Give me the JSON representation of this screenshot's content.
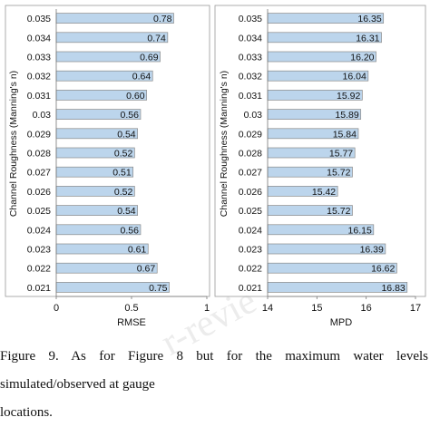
{
  "chart_data": [
    {
      "type": "bar",
      "orientation": "horizontal",
      "ylabel": "Channel Roughness (Manning's n)",
      "xlabel": "RMSE",
      "categories": [
        "0.035",
        "0.034",
        "0.033",
        "0.032",
        "0.031",
        "0.03",
        "0.029",
        "0.028",
        "0.027",
        "0.026",
        "0.025",
        "0.024",
        "0.023",
        "0.022",
        "0.021"
      ],
      "values": [
        0.78,
        0.74,
        0.69,
        0.64,
        0.6,
        0.56,
        0.54,
        0.52,
        0.51,
        0.52,
        0.54,
        0.56,
        0.61,
        0.67,
        0.75
      ],
      "value_labels": [
        "0.78",
        "0.74",
        "0.69",
        "0.64",
        "0.60",
        "0.56",
        "0.54",
        "0.52",
        "0.51",
        "0.52",
        "0.54",
        "0.56",
        "0.61",
        "0.67",
        "0.75"
      ],
      "xlim": [
        0,
        1
      ],
      "xticks": [
        "0",
        "0.5",
        "1"
      ],
      "bar_color": "#bcd5ec",
      "bar_edge": "#8a8a8a"
    },
    {
      "type": "bar",
      "orientation": "horizontal",
      "ylabel": "Channel Roughness (Manning's n)",
      "xlabel": "MPD",
      "categories": [
        "0.035",
        "0.034",
        "0.033",
        "0.032",
        "0.031",
        "0.03",
        "0.029",
        "0.028",
        "0.027",
        "0.026",
        "0.025",
        "0.024",
        "0.023",
        "0.022",
        "0.021"
      ],
      "values": [
        16.35,
        16.31,
        16.2,
        16.04,
        15.92,
        15.89,
        15.84,
        15.77,
        15.72,
        15.42,
        15.72,
        16.15,
        16.39,
        16.62,
        16.83
      ],
      "value_labels": [
        "16.35",
        "16.31",
        "16.20",
        "16.04",
        "15.92",
        "15.89",
        "15.84",
        "15.77",
        "15.72",
        "15.42",
        "15.72",
        "16.15",
        "16.39",
        "16.62",
        "16.83"
      ],
      "xlim": [
        14,
        17
      ],
      "xticks": [
        "14",
        "15",
        "16",
        "17"
      ],
      "bar_color": "#bcd5ec",
      "bar_edge": "#8a8a8a"
    }
  ],
  "caption": {
    "line1": "Figure 9. As for Figure 8 but for the maximum water levels simulated/observed at gauge",
    "line2": "locations."
  },
  "watermark": "r-revie"
}
